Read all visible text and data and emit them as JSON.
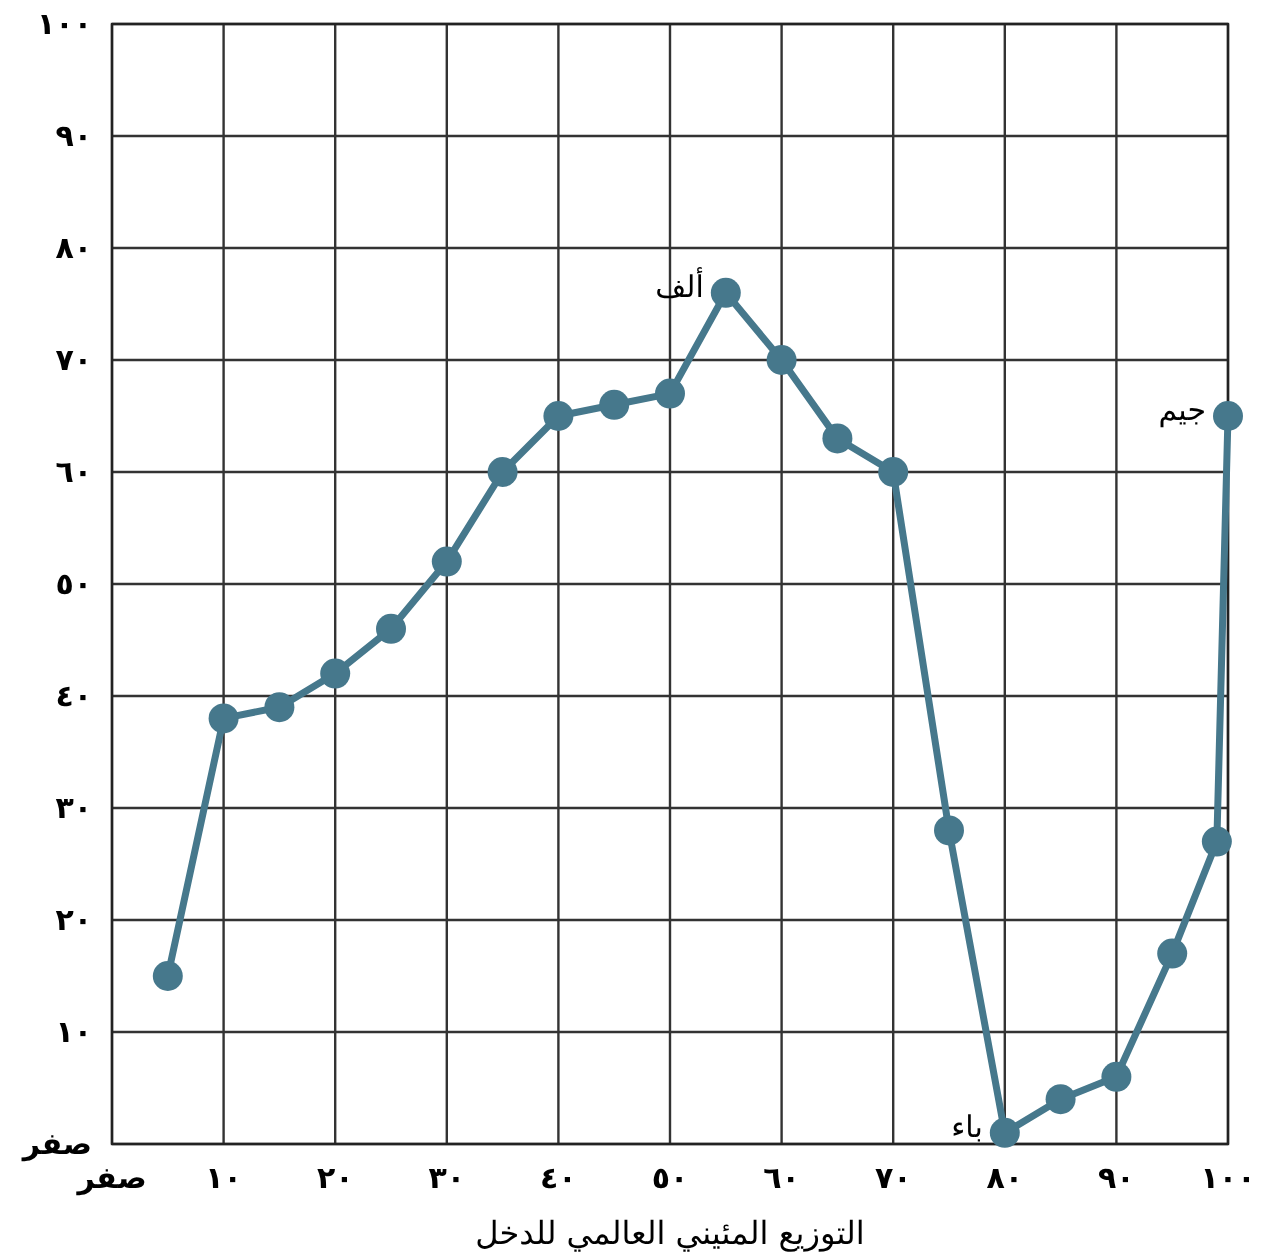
{
  "chart_data": {
    "type": "line",
    "xlabel": "التوزيع المئيني العالمي للدخل",
    "x": [
      5,
      10,
      15,
      20,
      25,
      30,
      35,
      40,
      45,
      50,
      55,
      60,
      65,
      70,
      75,
      80,
      85,
      90,
      95,
      99,
      100
    ],
    "series": [
      {
        "color": "#46788c",
        "values": [
          15,
          38,
          39,
          42,
          46,
          52,
          60,
          65,
          66,
          67,
          76,
          70,
          63,
          60,
          28,
          1,
          4,
          6,
          17,
          27,
          65
        ]
      }
    ],
    "xlim": [
      0,
      100
    ],
    "ylim": [
      0,
      100
    ],
    "xticks": [
      {
        "value": 0,
        "label": "صفر"
      },
      {
        "value": 10,
        "label": "١٠"
      },
      {
        "value": 20,
        "label": "٢٠"
      },
      {
        "value": 30,
        "label": "٣٠"
      },
      {
        "value": 40,
        "label": "٤٠"
      },
      {
        "value": 50,
        "label": "٥٠"
      },
      {
        "value": 60,
        "label": "٦٠"
      },
      {
        "value": 70,
        "label": "٧٠"
      },
      {
        "value": 80,
        "label": "٨٠"
      },
      {
        "value": 90,
        "label": "٩٠"
      },
      {
        "value": 100,
        "label": "١٠٠"
      }
    ],
    "yticks": [
      {
        "value": 0,
        "label": "صفر"
      },
      {
        "value": 10,
        "label": "١٠"
      },
      {
        "value": 20,
        "label": "٢٠"
      },
      {
        "value": 30,
        "label": "٣٠"
      },
      {
        "value": 40,
        "label": "٤٠"
      },
      {
        "value": 50,
        "label": "٥٠"
      },
      {
        "value": 60,
        "label": "٦٠"
      },
      {
        "value": 70,
        "label": "٧٠"
      },
      {
        "value": 80,
        "label": "٨٠"
      },
      {
        "value": 90,
        "label": "٩٠"
      },
      {
        "value": 100,
        "label": "١٠٠"
      }
    ],
    "annotations": [
      {
        "text": "ألف",
        "x": 55,
        "y": 76
      },
      {
        "text": "باء",
        "x": 80,
        "y": 1
      },
      {
        "text": "جيم",
        "x": 100,
        "y": 65
      }
    ],
    "grid": true,
    "marker": "circle",
    "line_style": "solid"
  }
}
